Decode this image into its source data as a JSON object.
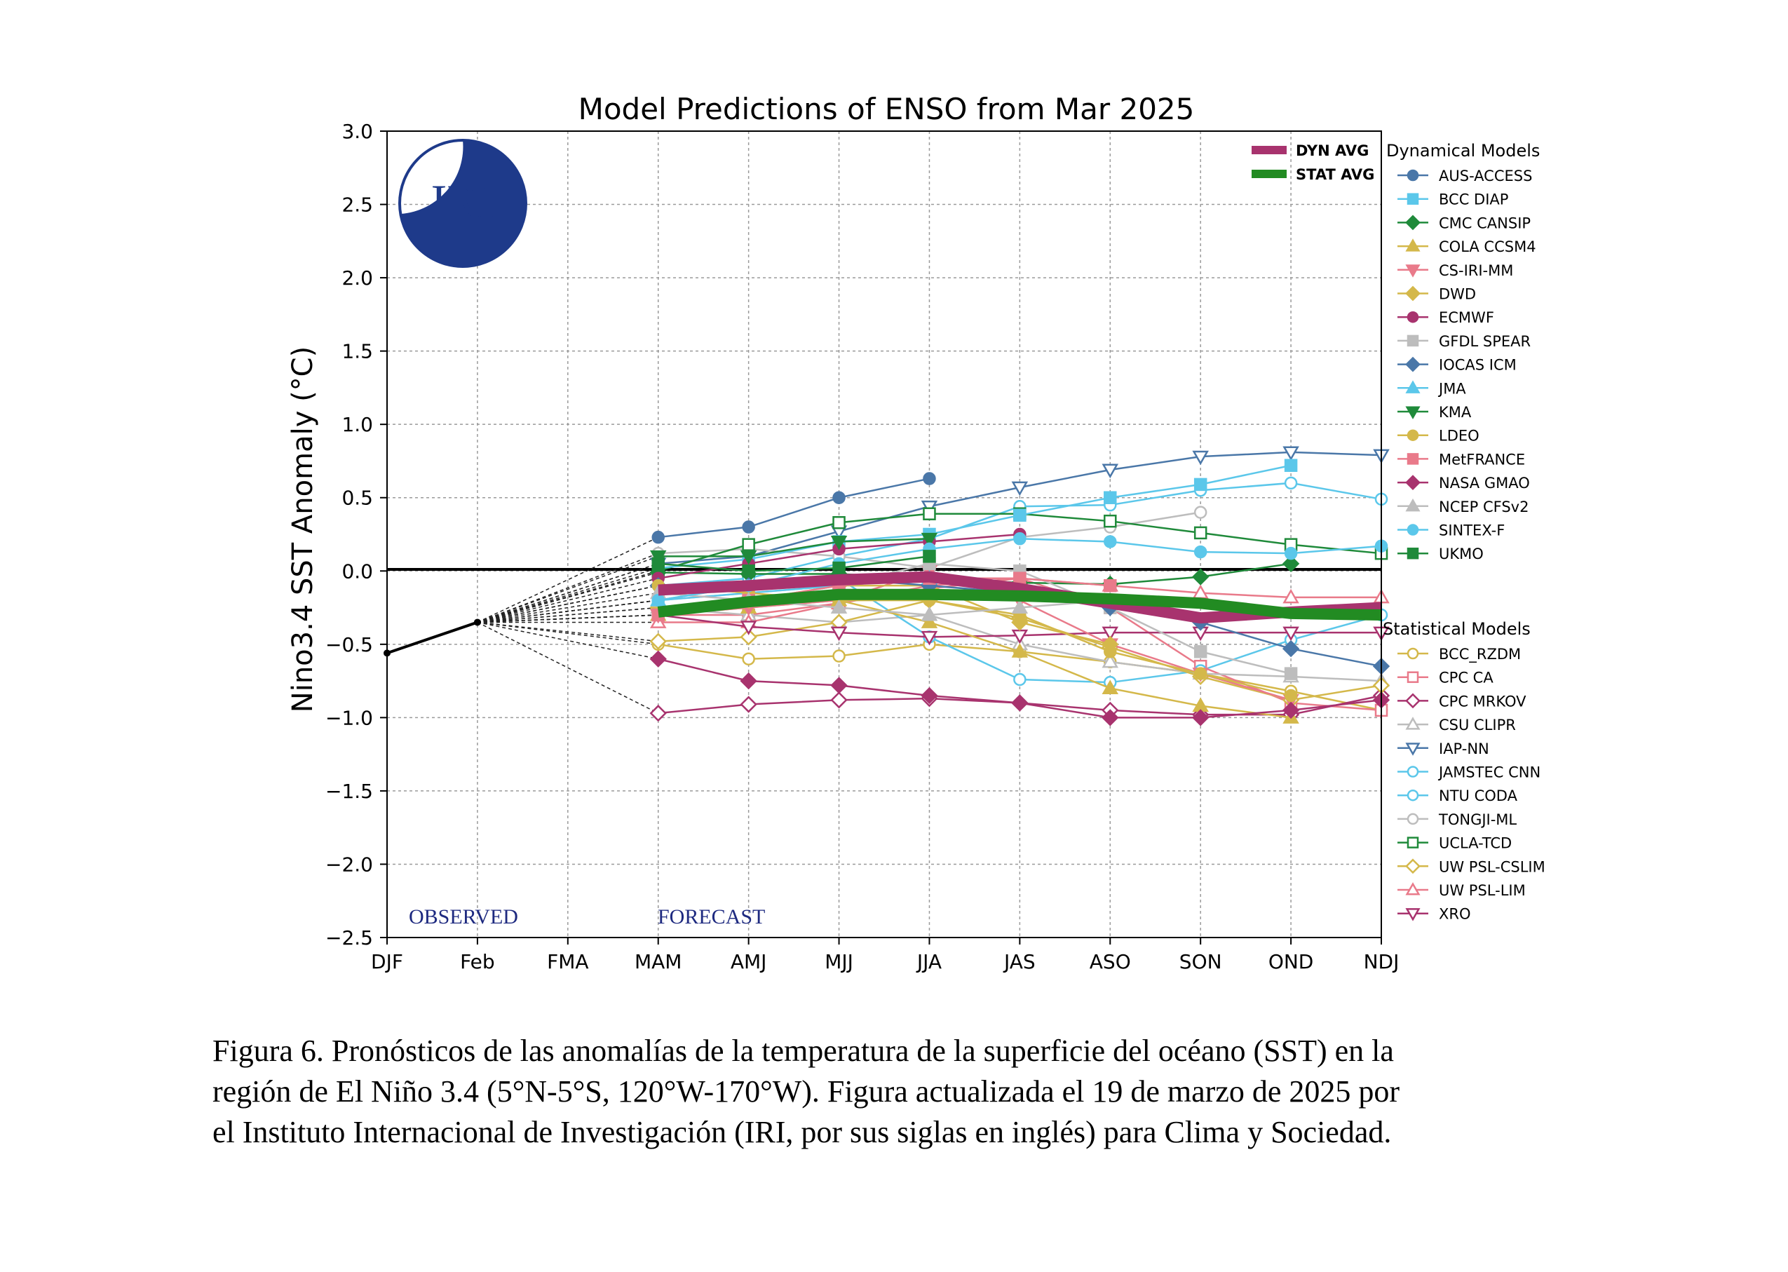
{
  "chart_data": {
    "type": "line",
    "title": "Model Predictions of ENSO from Mar 2025",
    "ylabel": "Nino3.4 SST Anomaly (°C)",
    "xlabel": "",
    "categories": [
      "DJF",
      "Feb",
      "FMA",
      "MAM",
      "AMJ",
      "MJJ",
      "JJA",
      "JAS",
      "ASO",
      "SON",
      "OND",
      "NDJ"
    ],
    "ylim": [
      -2.5,
      3.0
    ],
    "yticks": [
      "3.0",
      "2.5",
      "2.0",
      "1.5",
      "1.0",
      "0.5",
      "0.0",
      "−0.5",
      "−1.0",
      "−1.5",
      "−2.0",
      "−2.5"
    ],
    "grid": true,
    "annotations": {
      "observed": "OBSERVED",
      "forecast": "FORECAST"
    },
    "logo_text": "IRI",
    "observed": {
      "x": [
        "DJF",
        "Feb"
      ],
      "values": [
        -0.56,
        -0.35
      ]
    },
    "averages": [
      {
        "name": "DYN AVG",
        "color": "#a8336e",
        "values": [
          -0.13,
          -0.1,
          -0.06,
          -0.04,
          -0.12,
          -0.22,
          -0.32,
          -0.28,
          -0.25
        ]
      },
      {
        "name": "STAT AVG",
        "color": "#228b22",
        "values": [
          -0.28,
          -0.21,
          -0.16,
          -0.16,
          -0.17,
          -0.19,
          -0.22,
          -0.29,
          -0.3
        ]
      }
    ],
    "legend_dynamical_title": "Dynamical Models",
    "legend_statistical_title": "Statistical Models",
    "dynamical_models": [
      {
        "name": "AUS-ACCESS",
        "color": "#4a77a8",
        "marker": "circle",
        "values": [
          0.23,
          0.3,
          0.5,
          0.63
        ]
      },
      {
        "name": "BCC DIAP",
        "color": "#5bc7ea",
        "marker": "square",
        "values": [
          0.02,
          0.08,
          0.2,
          0.25,
          0.38,
          0.5,
          0.59,
          0.72
        ]
      },
      {
        "name": "CMC CANSIP",
        "color": "#1f8a3a",
        "marker": "diamond",
        "values": [
          -0.01,
          -0.02,
          -0.02,
          -0.05,
          -0.08,
          -0.09,
          -0.04,
          0.05
        ]
      },
      {
        "name": "COLA CCSM4",
        "color": "#d4b84a",
        "marker": "triangle-up",
        "values": [
          -0.3,
          -0.25,
          -0.2,
          -0.35,
          -0.55,
          -0.8,
          -0.92,
          -1.0
        ]
      },
      {
        "name": "CS-IRI-MM",
        "color": "#e97a8a",
        "marker": "triangle-down",
        "values": [
          -0.3,
          -0.25,
          -0.2,
          0.0,
          -0.2,
          -0.5,
          -0.7,
          -0.88
        ]
      },
      {
        "name": "DWD",
        "color": "#d4b84a",
        "marker": "diamond",
        "values": [
          -0.25,
          -0.2,
          -0.1,
          -0.1,
          -0.35,
          -0.5
        ]
      },
      {
        "name": "ECMWF",
        "color": "#a8336e",
        "marker": "circle",
        "values": [
          -0.05,
          0.05,
          0.15,
          0.2,
          0.25
        ]
      },
      {
        "name": "GFDL SPEAR",
        "color": "#bdbdbd",
        "marker": "square",
        "values": [
          -0.2,
          -0.15,
          -0.1,
          0.05,
          0.0,
          -0.25,
          -0.55,
          -0.7
        ]
      },
      {
        "name": "IOCAS ICM",
        "color": "#4a77a8",
        "marker": "diamond",
        "values": [
          -0.1,
          -0.1,
          -0.05,
          -0.1,
          -0.15,
          -0.25,
          -0.35,
          -0.53,
          -0.65
        ]
      },
      {
        "name": "JMA",
        "color": "#5bc7ea",
        "marker": "triangle-up",
        "values": [
          -0.2,
          -0.15,
          -0.1,
          -0.05,
          -0.1
        ]
      },
      {
        "name": "KMA",
        "color": "#1f8a3a",
        "marker": "triangle-down",
        "values": [
          0.1,
          0.1,
          0.2,
          0.22
        ]
      },
      {
        "name": "LDEO",
        "color": "#d4b84a",
        "marker": "circle",
        "values": [
          -0.1,
          -0.15,
          -0.2,
          -0.2,
          -0.3,
          -0.55,
          -0.7,
          -0.85
        ]
      },
      {
        "name": "MetFRANCE",
        "color": "#e97a8a",
        "marker": "square",
        "values": [
          -0.3,
          -0.2,
          -0.1,
          -0.05,
          -0.05,
          -0.1
        ]
      },
      {
        "name": "NASA GMAO",
        "color": "#a8336e",
        "marker": "diamond",
        "values": [
          -0.6,
          -0.75,
          -0.78,
          -0.85,
          -0.9,
          -1.0,
          -1.0,
          -0.95,
          -0.88
        ]
      },
      {
        "name": "NCEP CFSv2",
        "color": "#bdbdbd",
        "marker": "triangle-up",
        "values": [
          -0.15,
          -0.2,
          -0.25,
          -0.3,
          -0.25,
          -0.2
        ]
      },
      {
        "name": "SINTEX-F",
        "color": "#5bc7ea",
        "marker": "circle",
        "values": [
          -0.2,
          -0.1,
          0.05,
          0.15,
          0.22,
          0.2,
          0.13,
          0.12,
          0.17
        ]
      },
      {
        "name": "UKMO",
        "color": "#1f8a3a",
        "marker": "square",
        "values": [
          0.05,
          0.0,
          0.02,
          0.1
        ]
      }
    ],
    "statistical_models": [
      {
        "name": "BCC_RZDM",
        "color": "#d4b84a",
        "marker": "circle",
        "values": [
          -0.5,
          -0.6,
          -0.58,
          -0.5,
          -0.55,
          -0.62,
          -0.7,
          -0.82,
          -0.95
        ]
      },
      {
        "name": "CPC CA",
        "color": "#e97a8a",
        "marker": "square",
        "values": [
          -0.3,
          -0.3,
          -0.22,
          -0.12,
          -0.05,
          -0.25,
          -0.65,
          -0.9,
          -0.95
        ]
      },
      {
        "name": "CPC MRKOV",
        "color": "#a8336e",
        "marker": "diamond",
        "values": [
          -0.97,
          -0.91,
          -0.88,
          -0.87,
          -0.9,
          -0.95,
          -0.98,
          -0.98,
          -0.85
        ]
      },
      {
        "name": "CSU CLIPR",
        "color": "#bdbdbd",
        "marker": "triangle-up",
        "values": [
          -0.25,
          -0.3,
          -0.35,
          -0.3,
          -0.5,
          -0.62,
          -0.7,
          -0.72,
          -0.75
        ]
      },
      {
        "name": "IAP-NN",
        "color": "#4a77a8",
        "marker": "triangle-down",
        "values": [
          0.05,
          0.1,
          0.27,
          0.44,
          0.57,
          0.69,
          0.78,
          0.81,
          0.79
        ]
      },
      {
        "name": "JAMSTEC CNN",
        "color": "#5bc7ea",
        "marker": "circle",
        "values": [
          -0.1,
          -0.05,
          0.1,
          0.22,
          0.44,
          0.45,
          0.55,
          0.6,
          0.49
        ]
      },
      {
        "name": "NTU CODA",
        "color": "#5bc7ea",
        "marker": "circle",
        "values": [
          -0.2,
          -0.1,
          -0.05,
          -0.45,
          -0.74,
          -0.76,
          -0.68,
          -0.47,
          -0.3
        ]
      },
      {
        "name": "TONGJI-ML",
        "color": "#bdbdbd",
        "marker": "circle",
        "values": [
          0.12,
          0.15,
          0.1,
          0.02,
          0.23,
          0.3,
          0.4
        ]
      },
      {
        "name": "UCLA-TCD",
        "color": "#1f8a3a",
        "marker": "square",
        "values": [
          0.0,
          0.18,
          0.33,
          0.39,
          0.39,
          0.34,
          0.26,
          0.18,
          0.12
        ]
      },
      {
        "name": "UW PSL-CSLIM",
        "color": "#d4b84a",
        "marker": "diamond",
        "values": [
          -0.48,
          -0.45,
          -0.35,
          -0.2,
          -0.32,
          -0.52,
          -0.72,
          -0.88,
          -0.78
        ]
      },
      {
        "name": "UW PSL-LIM",
        "color": "#e97a8a",
        "marker": "triangle-up",
        "values": [
          -0.35,
          -0.35,
          -0.22,
          -0.1,
          -0.05,
          -0.1,
          -0.15,
          -0.18,
          -0.18
        ]
      },
      {
        "name": "XRO",
        "color": "#a8336e",
        "marker": "triangle-down",
        "values": [
          -0.3,
          -0.38,
          -0.42,
          -0.45,
          -0.44,
          -0.42,
          -0.42,
          -0.42,
          -0.42
        ]
      }
    ]
  },
  "caption": {
    "line1": "Figura 6. Pronósticos de las anomalías de la temperatura de la superficie del océano (SST) en la",
    "line2": "región de El Niño 3.4 (5°N-5°S, 120°W-170°W). Figura actualizada el 19 de marzo de 2025 por",
    "line3": "el Instituto Internacional de Investigación (IRI, por sus siglas en inglés) para Clima y Sociedad."
  }
}
